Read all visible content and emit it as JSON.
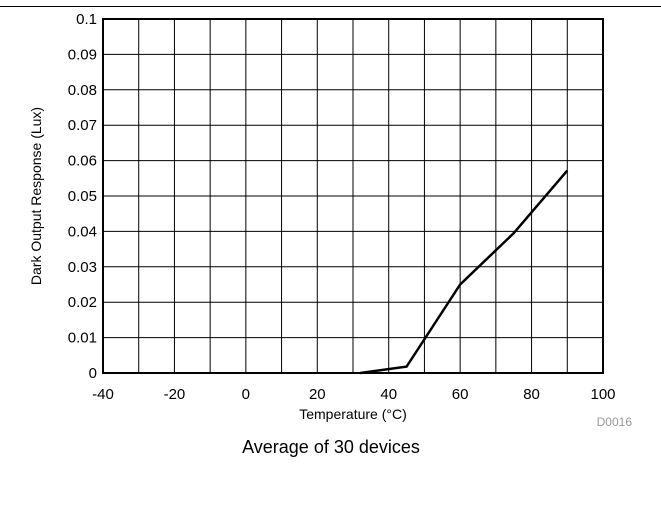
{
  "chart_data": {
    "type": "line",
    "title": "",
    "xlabel": "Temperature (°C)",
    "ylabel": "Dark Output Response (Lux)",
    "xlim": [
      -40,
      100
    ],
    "ylim": [
      0,
      0.1
    ],
    "x_ticks": [
      "-40",
      "-20",
      "0",
      "20",
      "40",
      "60",
      "80",
      "100"
    ],
    "y_ticks": [
      "0",
      "0.01",
      "0.02",
      "0.03",
      "0.04",
      "0.05",
      "0.06",
      "0.07",
      "0.08",
      "0.09",
      "0.1"
    ],
    "grid": true,
    "series": [
      {
        "x": [
          32,
          45,
          60,
          75,
          90
        ],
        "y": [
          0.0,
          0.0018,
          0.025,
          0.0395,
          0.0572
        ]
      }
    ],
    "figure_code": "D0016",
    "caption": "Average of 30 devices"
  },
  "colors": {
    "line": "#000000",
    "grid": "#000000",
    "code": "#999999"
  }
}
